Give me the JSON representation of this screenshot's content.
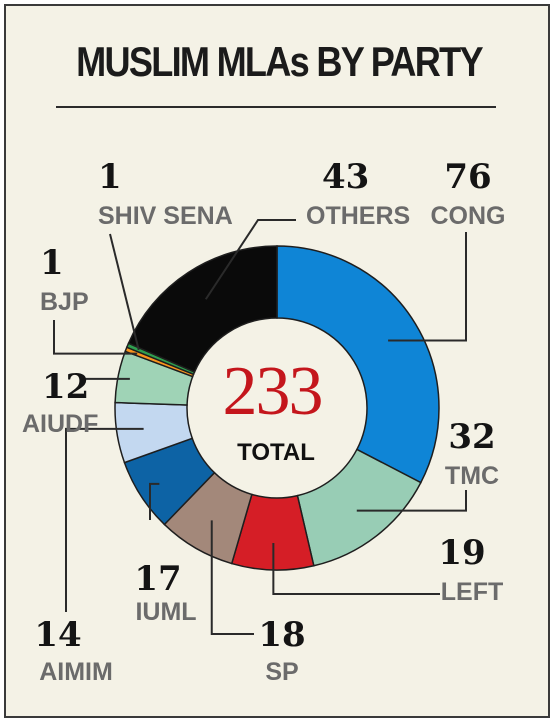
{
  "title": "MUSLIM MLAs BY PARTY",
  "chart_data": {
    "type": "pie",
    "title": "MUSLIM MLAs BY PARTY",
    "center_value": "233",
    "center_label": "TOTAL",
    "slices": [
      {
        "label": "CONG",
        "value": 76,
        "color": "#0f85d6"
      },
      {
        "label": "TMC",
        "value": 32,
        "color": "#98cdb5"
      },
      {
        "label": "LEFT",
        "value": 19,
        "color": "#d51e26"
      },
      {
        "label": "SP",
        "value": 18,
        "color": "#a3887a"
      },
      {
        "label": "IUML",
        "value": 17,
        "color": "#0d63a5"
      },
      {
        "label": "AIMIM",
        "value": 14,
        "color": "#c3d8f0"
      },
      {
        "label": "AIUDF",
        "value": 12,
        "color": "#9fd3b6"
      },
      {
        "label": "BJP",
        "value": 1,
        "color": "#f7941d"
      },
      {
        "label": "SHIV SENA",
        "value": 1,
        "color": "#2f9e4f"
      },
      {
        "label": "OTHERS",
        "value": 43,
        "color": "#0a0a0a"
      }
    ]
  }
}
